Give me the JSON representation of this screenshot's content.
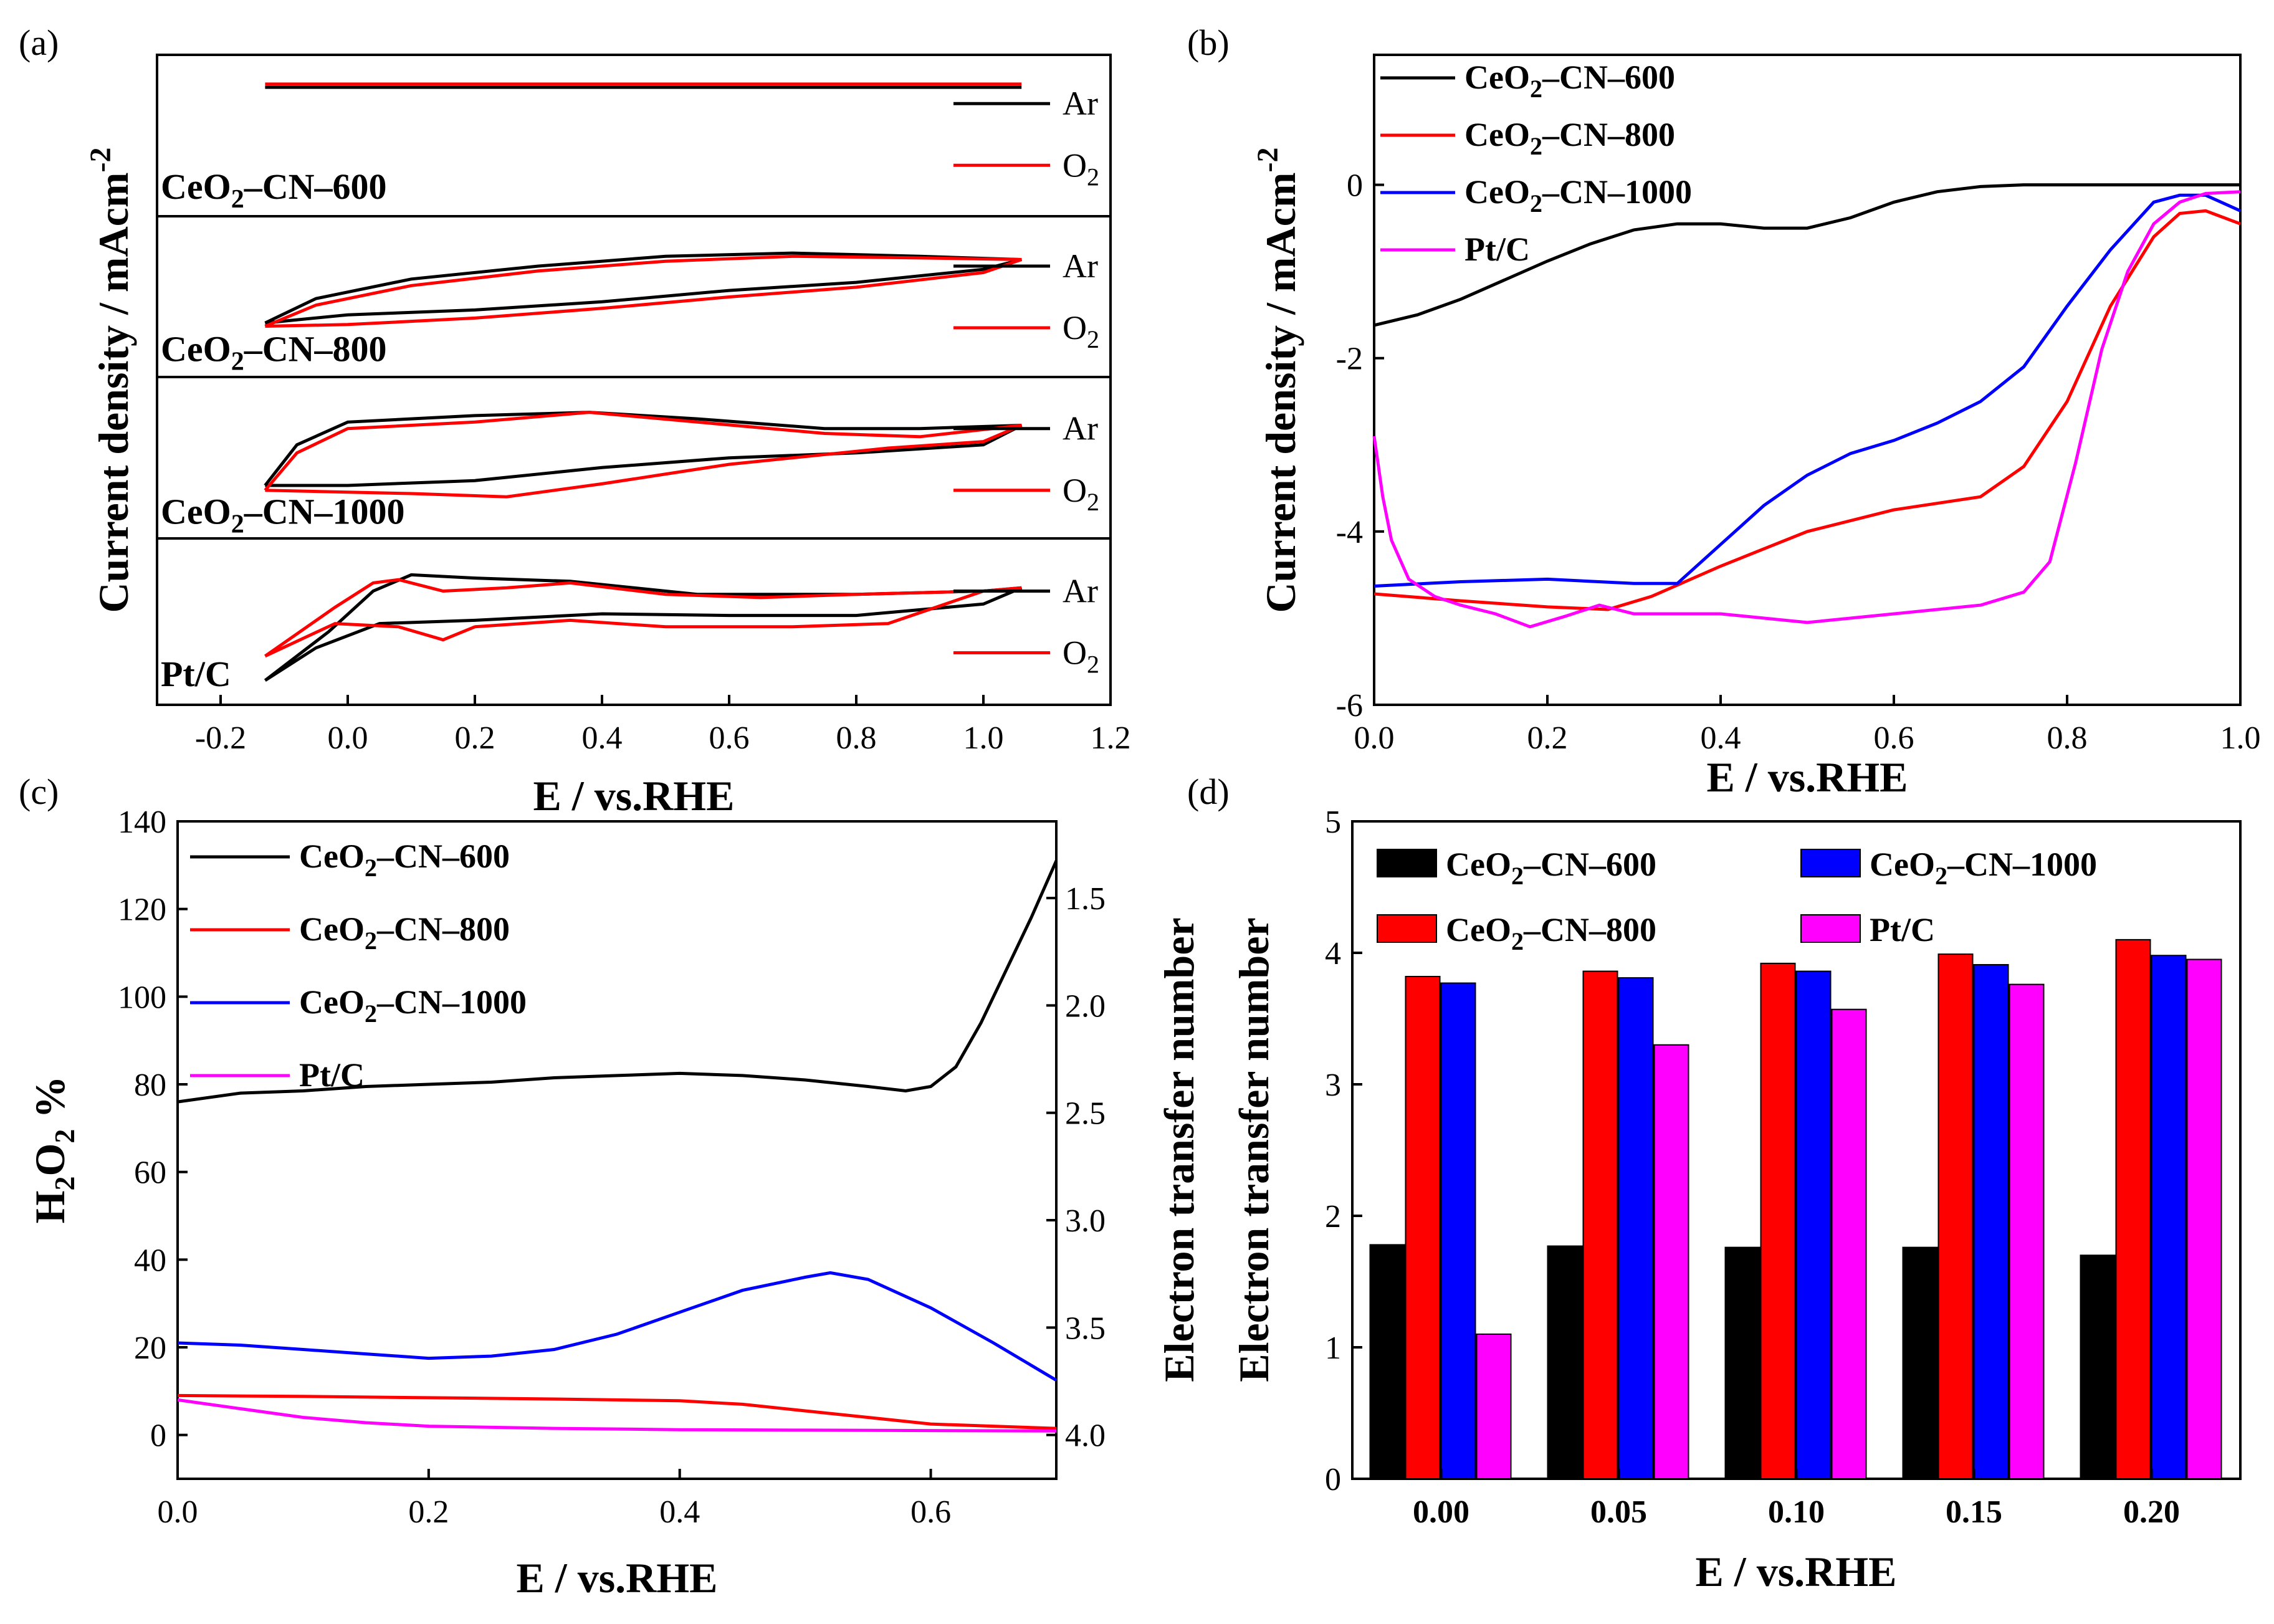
{
  "figure": {
    "panel_labels": [
      "(a)",
      "(b)",
      "(c)",
      "(d)"
    ],
    "colors": {
      "CeO2-CN-600": "#000000",
      "CeO2-CN-800": "#ff0000",
      "CeO2-CN-1000": "#0000ff",
      "Pt/C": "#ff00ff"
    }
  },
  "chart_data": [
    {
      "panel": "(a)",
      "type": "line",
      "title": "",
      "xlabel": "E / vs.RHE",
      "ylabel": "Current density / mAcm",
      "ylabel_sup": "-2",
      "xlim": [
        -0.3,
        1.2
      ],
      "xticks": [
        "-0.2",
        "0.0",
        "0.2",
        "0.4",
        "0.6",
        "0.8",
        "1.0",
        "1.2"
      ],
      "xtick_values": [
        -0.2,
        0.0,
        0.2,
        0.4,
        0.6,
        0.8,
        1.0,
        1.2
      ],
      "legend_entries": [
        "Ar",
        "O",
        "2"
      ],
      "stacks": [
        {
          "sample": "CeO",
          "sample_sub": "2",
          "sample_rest": "–CN–600",
          "series": [
            {
              "name": "Ar",
              "color": "#000000",
              "x": [
                -0.13,
                0.2,
                0.6,
                1.06
              ],
              "y": [
                0.8,
                0.8,
                0.8,
                0.8
              ]
            },
            {
              "name": "O2",
              "color": "#ff0000",
              "x": [
                -0.13,
                0.2,
                0.6,
                1.06
              ],
              "y": [
                0.82,
                0.82,
                0.82,
                0.82
              ]
            }
          ]
        },
        {
          "sample": "CeO",
          "sample_sub": "2",
          "sample_rest": "–CN–800",
          "series": [
            {
              "name": "Ar",
              "color": "#000000",
              "x": [
                -0.13,
                -0.05,
                0.1,
                0.3,
                0.5,
                0.7,
                0.9,
                1.06,
                1.0,
                0.8,
                0.6,
                0.4,
                0.2,
                0.0,
                -0.13
              ],
              "y": [
                0.35,
                0.5,
                0.62,
                0.7,
                0.76,
                0.78,
                0.76,
                0.74,
                0.68,
                0.6,
                0.55,
                0.48,
                0.43,
                0.4,
                0.35
              ]
            },
            {
              "name": "O2",
              "color": "#ff0000",
              "x": [
                -0.13,
                -0.05,
                0.1,
                0.3,
                0.5,
                0.7,
                0.9,
                1.06,
                1.0,
                0.8,
                0.6,
                0.4,
                0.2,
                0.0,
                -0.13
              ],
              "y": [
                0.33,
                0.46,
                0.58,
                0.67,
                0.73,
                0.76,
                0.75,
                0.74,
                0.66,
                0.57,
                0.51,
                0.44,
                0.38,
                0.34,
                0.33
              ]
            }
          ]
        },
        {
          "sample": "CeO",
          "sample_sub": "2",
          "sample_rest": "–CN–1000",
          "series": [
            {
              "name": "Ar",
              "color": "#000000",
              "x": [
                -0.13,
                -0.08,
                0.0,
                0.2,
                0.38,
                0.55,
                0.75,
                0.9,
                1.06,
                1.0,
                0.8,
                0.6,
                0.4,
                0.2,
                0.0,
                -0.13
              ],
              "y": [
                0.35,
                0.6,
                0.74,
                0.78,
                0.8,
                0.76,
                0.7,
                0.7,
                0.72,
                0.6,
                0.55,
                0.52,
                0.46,
                0.38,
                0.35,
                0.35
              ]
            },
            {
              "name": "O2",
              "color": "#ff0000",
              "x": [
                -0.13,
                -0.08,
                0.0,
                0.2,
                0.38,
                0.55,
                0.75,
                0.9,
                1.06,
                1.0,
                0.85,
                0.6,
                0.4,
                0.25,
                0.1,
                -0.13
              ],
              "y": [
                0.32,
                0.55,
                0.7,
                0.74,
                0.8,
                0.74,
                0.67,
                0.65,
                0.72,
                0.62,
                0.58,
                0.48,
                0.36,
                0.28,
                0.3,
                0.32
              ]
            }
          ]
        },
        {
          "sample": "Pt/C",
          "sample_sub": "",
          "sample_rest": "",
          "series": [
            {
              "name": "Ar",
              "color": "#000000",
              "x": [
                -0.13,
                -0.03,
                0.04,
                0.1,
                0.2,
                0.35,
                0.55,
                0.8,
                1.0,
                1.06,
                1.0,
                0.8,
                0.6,
                0.4,
                0.2,
                0.05,
                -0.05,
                -0.13
              ],
              "y": [
                0.15,
                0.45,
                0.7,
                0.8,
                0.78,
                0.76,
                0.68,
                0.68,
                0.7,
                0.72,
                0.62,
                0.55,
                0.55,
                0.56,
                0.52,
                0.5,
                0.35,
                0.15
              ]
            },
            {
              "name": "O2",
              "color": "#ff0000",
              "x": [
                -0.13,
                -0.02,
                0.04,
                0.08,
                0.15,
                0.25,
                0.35,
                0.5,
                0.65,
                0.8,
                1.0,
                1.06,
                1.0,
                0.85,
                0.7,
                0.5,
                0.35,
                0.2,
                0.15,
                0.08,
                -0.02,
                -0.13
              ],
              "y": [
                0.3,
                0.6,
                0.75,
                0.77,
                0.7,
                0.72,
                0.75,
                0.68,
                0.66,
                0.68,
                0.7,
                0.72,
                0.7,
                0.5,
                0.48,
                0.48,
                0.52,
                0.48,
                0.4,
                0.48,
                0.5,
                0.3
              ]
            }
          ]
        }
      ]
    },
    {
      "panel": "(b)",
      "type": "line",
      "title": "",
      "xlabel": "E / vs.RHE",
      "ylabel": "Current density / mAcm",
      "ylabel_sup": "-2",
      "xlim": [
        0.0,
        1.0
      ],
      "ylim": [
        -6,
        1.5
      ],
      "xticks": [
        "0.0",
        "0.2",
        "0.4",
        "0.6",
        "0.8",
        "1.0"
      ],
      "xtick_values": [
        0.0,
        0.2,
        0.4,
        0.6,
        0.8,
        1.0
      ],
      "yticks": [
        "0",
        "-2",
        "-4",
        "-6"
      ],
      "ytick_values": [
        0,
        -2,
        -4,
        -6
      ],
      "legend": [
        {
          "name": "CeO2–CN–600",
          "base": "CeO",
          "sub": "2",
          "rest": "–CN–600",
          "color": "#000000"
        },
        {
          "name": "CeO2–CN–800",
          "base": "CeO",
          "sub": "2",
          "rest": "–CN–800",
          "color": "#ff0000"
        },
        {
          "name": "CeO2–CN–1000",
          "base": "CeO",
          "sub": "2",
          "rest": "–CN–1000",
          "color": "#0000ff"
        },
        {
          "name": "Pt/C",
          "base": "Pt/C",
          "sub": "",
          "rest": "",
          "color": "#ff00ff"
        }
      ],
      "series": [
        {
          "name": "CeO2–CN–600",
          "color": "#000000",
          "x": [
            0.0,
            0.05,
            0.1,
            0.15,
            0.2,
            0.25,
            0.3,
            0.35,
            0.4,
            0.45,
            0.5,
            0.55,
            0.6,
            0.65,
            0.7,
            0.75,
            0.8,
            0.9,
            1.0
          ],
          "y": [
            -1.62,
            -1.5,
            -1.32,
            -1.1,
            -0.88,
            -0.68,
            -0.52,
            -0.45,
            -0.45,
            -0.5,
            -0.5,
            -0.38,
            -0.2,
            -0.08,
            -0.02,
            0.0,
            0.0,
            0.0,
            0.0
          ]
        },
        {
          "name": "CeO2–CN–800",
          "color": "#ff0000",
          "x": [
            0.0,
            0.1,
            0.2,
            0.27,
            0.32,
            0.4,
            0.5,
            0.6,
            0.7,
            0.75,
            0.8,
            0.85,
            0.9,
            0.93,
            0.96,
            1.0
          ],
          "y": [
            -4.72,
            -4.8,
            -4.87,
            -4.9,
            -4.75,
            -4.4,
            -4.0,
            -3.75,
            -3.6,
            -3.25,
            -2.5,
            -1.4,
            -0.6,
            -0.33,
            -0.3,
            -0.45
          ]
        },
        {
          "name": "CeO2–CN–1000",
          "color": "#0000ff",
          "x": [
            0.0,
            0.1,
            0.2,
            0.3,
            0.35,
            0.4,
            0.45,
            0.5,
            0.55,
            0.6,
            0.65,
            0.7,
            0.75,
            0.8,
            0.85,
            0.9,
            0.93,
            0.96,
            1.0
          ],
          "y": [
            -4.63,
            -4.58,
            -4.55,
            -4.6,
            -4.6,
            -4.15,
            -3.7,
            -3.35,
            -3.1,
            -2.95,
            -2.75,
            -2.5,
            -2.1,
            -1.4,
            -0.75,
            -0.2,
            -0.12,
            -0.12,
            -0.3
          ]
        },
        {
          "name": "Pt/C",
          "color": "#ff00ff",
          "x": [
            0.0,
            0.01,
            0.02,
            0.04,
            0.07,
            0.1,
            0.14,
            0.18,
            0.22,
            0.26,
            0.3,
            0.35,
            0.4,
            0.5,
            0.6,
            0.7,
            0.75,
            0.78,
            0.81,
            0.84,
            0.87,
            0.9,
            0.93,
            0.96,
            1.0
          ],
          "y": [
            -2.9,
            -3.6,
            -4.1,
            -4.55,
            -4.75,
            -4.85,
            -4.95,
            -5.1,
            -4.98,
            -4.85,
            -4.95,
            -4.95,
            -4.95,
            -5.05,
            -4.95,
            -4.85,
            -4.7,
            -4.35,
            -3.2,
            -1.9,
            -1.0,
            -0.45,
            -0.2,
            -0.1,
            -0.08
          ]
        }
      ]
    },
    {
      "panel": "(c)",
      "type": "line",
      "title": "",
      "xlabel": "E / vs.RHE",
      "ylabel": "H2O2 %",
      "ylabel_parts": [
        "H",
        "2",
        "O",
        "2",
        " %"
      ],
      "ylabel_right": "Electron transfer number",
      "xlim": [
        0.0,
        0.7
      ],
      "ylim": [
        -10,
        140
      ],
      "xticks": [
        "0.0",
        "0.2",
        "0.4",
        "0.6"
      ],
      "xtick_values": [
        0.0,
        0.2,
        0.4,
        0.6
      ],
      "yticks": [
        "0",
        "20",
        "40",
        "60",
        "80",
        "100",
        "120",
        "140"
      ],
      "ytick_values": [
        0,
        20,
        40,
        60,
        80,
        100,
        120,
        140
      ],
      "yticks_right": [
        "1.5",
        "2.0",
        "2.5",
        "3.0",
        "3.5",
        "4.0"
      ],
      "ytick_right_values": [
        1.5,
        2.0,
        2.5,
        3.0,
        3.5,
        4.0
      ],
      "legend": [
        {
          "name": "CeO2–CN–600",
          "base": "CeO",
          "sub": "2",
          "rest": "–CN–600",
          "color": "#000000"
        },
        {
          "name": "CeO2–CN–800",
          "base": "CeO",
          "sub": "2",
          "rest": "–CN–800",
          "color": "#ff0000"
        },
        {
          "name": "CeO2–CN–1000",
          "base": "CeO",
          "sub": "2",
          "rest": "–CN–1000",
          "color": "#0000ff"
        },
        {
          "name": "Pt/C",
          "base": "Pt/C",
          "sub": "",
          "rest": "",
          "color": "#ff00ff"
        }
      ],
      "series": [
        {
          "name": "CeO2–CN–600",
          "color": "#000000",
          "x": [
            0.0,
            0.05,
            0.1,
            0.15,
            0.2,
            0.25,
            0.3,
            0.35,
            0.4,
            0.45,
            0.5,
            0.55,
            0.58,
            0.6,
            0.62,
            0.64,
            0.66,
            0.68,
            0.7
          ],
          "y": [
            76,
            78,
            78.5,
            79.5,
            80,
            80.5,
            81.5,
            82,
            82.5,
            82,
            81,
            79.5,
            78.5,
            79.5,
            84,
            94,
            106,
            118,
            131
          ]
        },
        {
          "name": "CeO2–CN–800",
          "color": "#ff0000",
          "x": [
            0.0,
            0.1,
            0.2,
            0.3,
            0.4,
            0.45,
            0.5,
            0.55,
            0.6,
            0.65,
            0.7
          ],
          "y": [
            9,
            8.8,
            8.5,
            8.2,
            7.8,
            7,
            5.5,
            4,
            2.5,
            2,
            1.5
          ]
        },
        {
          "name": "CeO2–CN–1000",
          "color": "#0000ff",
          "x": [
            0.0,
            0.05,
            0.1,
            0.15,
            0.2,
            0.25,
            0.3,
            0.35,
            0.4,
            0.45,
            0.5,
            0.52,
            0.55,
            0.6,
            0.65,
            0.7
          ],
          "y": [
            21,
            20.5,
            19.5,
            18.5,
            17.5,
            18,
            19.5,
            23,
            28,
            33,
            36,
            37,
            35.5,
            29,
            21,
            12.5
          ]
        },
        {
          "name": "Pt/C",
          "color": "#ff00ff",
          "x": [
            0.0,
            0.05,
            0.1,
            0.15,
            0.2,
            0.3,
            0.4,
            0.5,
            0.6,
            0.7
          ],
          "y": [
            8,
            6,
            4,
            2.8,
            2,
            1.5,
            1.2,
            1.1,
            1,
            0.9
          ]
        }
      ]
    },
    {
      "panel": "(d)",
      "type": "bar",
      "title": "",
      "xlabel": "E / vs.RHE",
      "ylabel": "Electron transfer number",
      "ylim": [
        0,
        5
      ],
      "categories": [
        "0.00",
        "0.05",
        "0.10",
        "0.15",
        "0.20"
      ],
      "yticks": [
        "0",
        "1",
        "2",
        "3",
        "4",
        "5"
      ],
      "ytick_values": [
        0,
        1,
        2,
        3,
        4,
        5
      ],
      "legend": [
        {
          "name": "CeO2–CN–600",
          "base": "CeO",
          "sub": "2",
          "rest": "–CN–600",
          "color": "#000000"
        },
        {
          "name": "CeO2–CN–1000",
          "base": "CeO",
          "sub": "2",
          "rest": "–CN–1000",
          "color": "#0000ff"
        },
        {
          "name": "CeO2–CN–800",
          "base": "CeO",
          "sub": "2",
          "rest": "–CN–800",
          "color": "#ff0000"
        },
        {
          "name": "Pt/C",
          "base": "Pt/C",
          "sub": "",
          "rest": "",
          "color": "#ff00ff"
        }
      ],
      "series": [
        {
          "name": "CeO2–CN–600",
          "color": "#000000",
          "values": [
            1.78,
            1.77,
            1.76,
            1.76,
            1.7
          ]
        },
        {
          "name": "CeO2–CN–800",
          "color": "#ff0000",
          "values": [
            3.82,
            3.86,
            3.92,
            3.99,
            4.1
          ]
        },
        {
          "name": "CeO2–CN–1000",
          "color": "#0000ff",
          "values": [
            3.77,
            3.81,
            3.86,
            3.91,
            3.98
          ]
        },
        {
          "name": "Pt/C",
          "color": "#ff00ff",
          "values": [
            1.1,
            3.3,
            3.57,
            3.76,
            3.95
          ]
        }
      ]
    }
  ]
}
